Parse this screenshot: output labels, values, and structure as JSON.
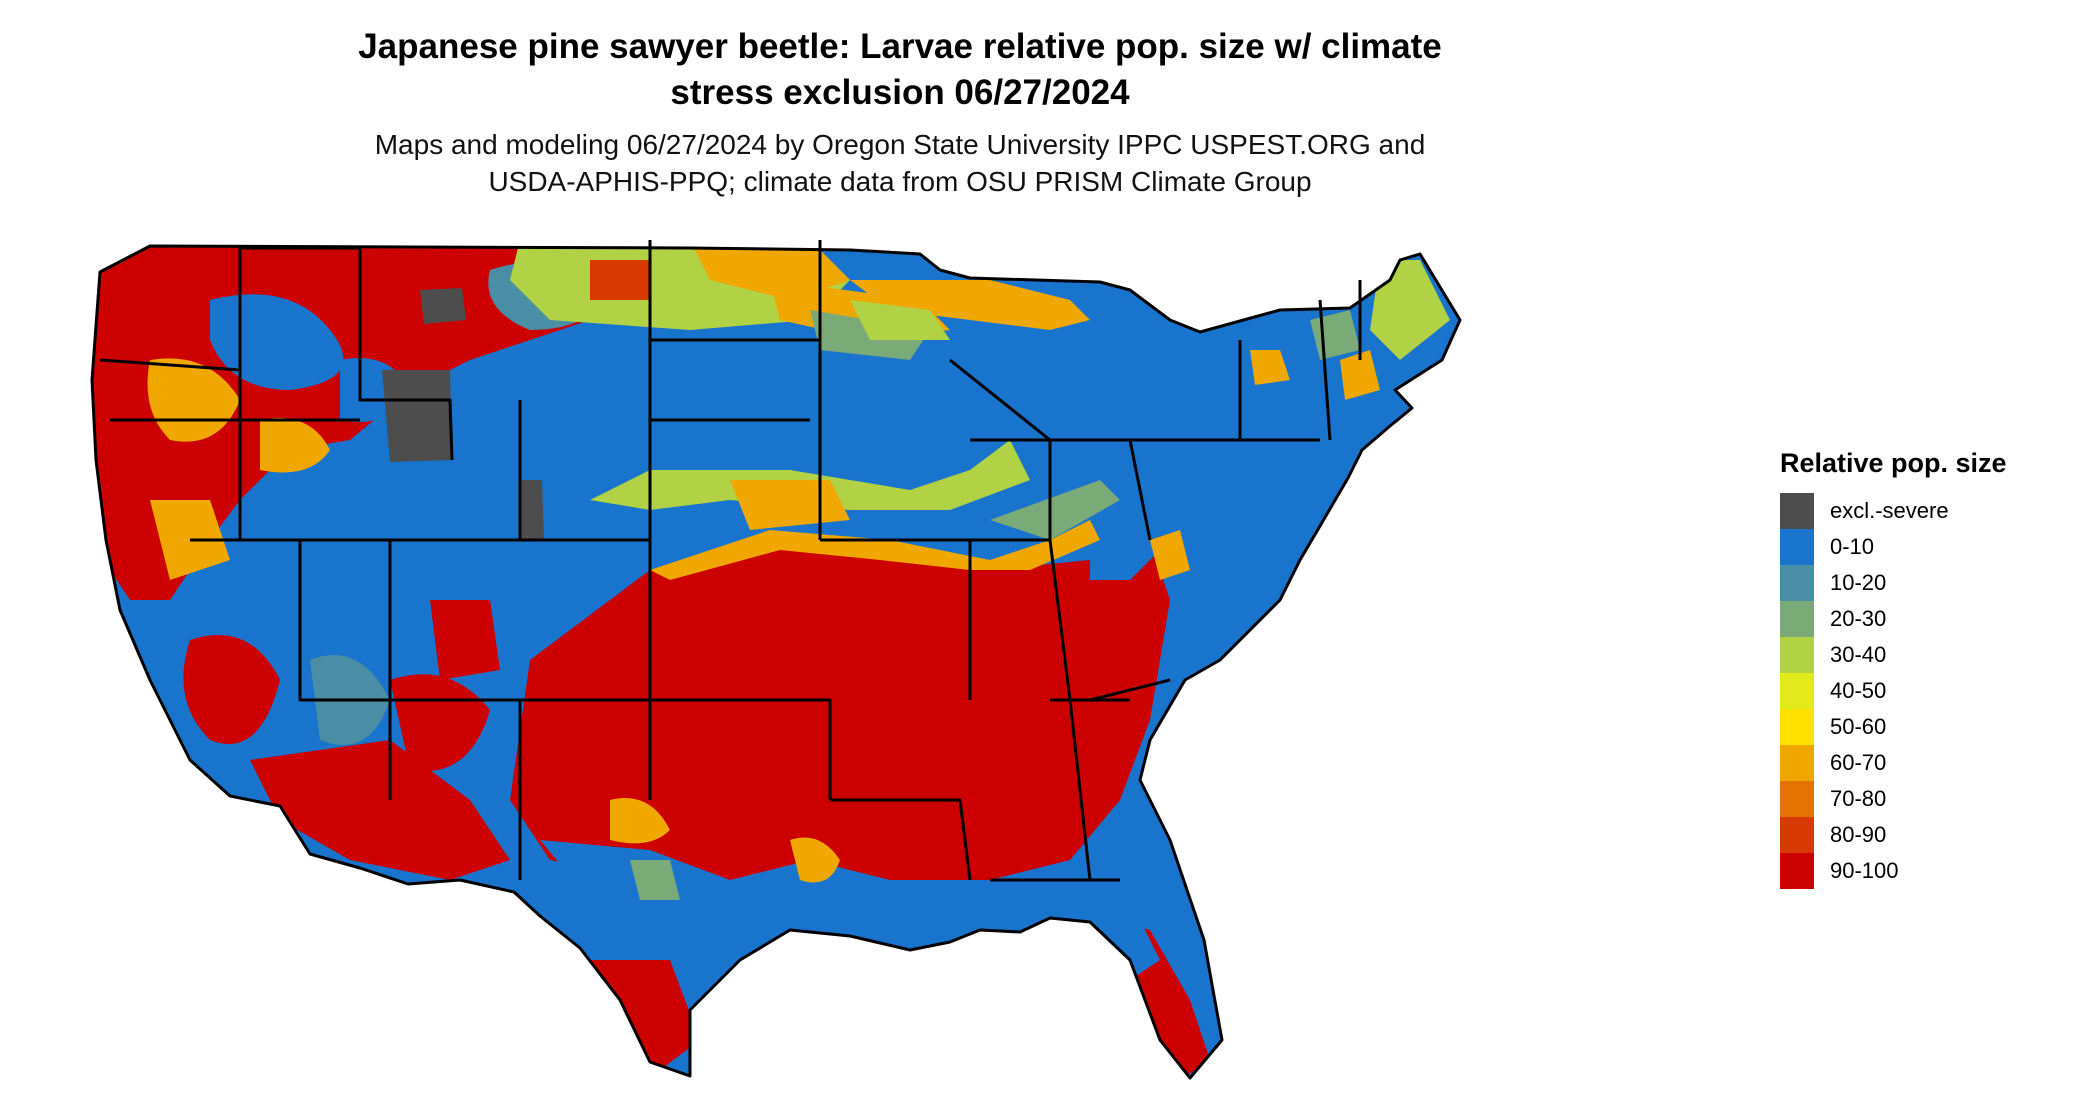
{
  "title": {
    "line1": "Japanese pine sawyer beetle: Larvae relative pop. size w/ climate",
    "line2": "stress exclusion 06/27/2024"
  },
  "subtitle": {
    "line1": "Maps and modeling 06/27/2024 by Oregon State University IPPC USPEST.ORG and",
    "line2": "USDA-APHIS-PPQ; climate data from OSU PRISM Climate Group"
  },
  "legend": {
    "title": "Relative pop. size",
    "items": [
      {
        "label": "excl.-severe",
        "color": "#4d4d4d"
      },
      {
        "label": "0-10",
        "color": "#1874cd"
      },
      {
        "label": "10-20",
        "color": "#4a8ea5"
      },
      {
        "label": "20-30",
        "color": "#7aaa78"
      },
      {
        "label": "30-40",
        "color": "#b0d244"
      },
      {
        "label": "40-50",
        "color": "#e2ea1c"
      },
      {
        "label": "50-60",
        "color": "#ffe000"
      },
      {
        "label": "60-70",
        "color": "#f0a800"
      },
      {
        "label": "70-80",
        "color": "#e37200"
      },
      {
        "label": "80-90",
        "color": "#d63a00"
      },
      {
        "label": "90-100",
        "color": "#cd0000"
      }
    ]
  },
  "map": {
    "regions": [
      {
        "name": "pacific-northwest",
        "color": "#cd0000"
      },
      {
        "name": "great-basin",
        "color": "#1874cd"
      },
      {
        "name": "rocky-mountains",
        "color": "#cd0000"
      },
      {
        "name": "wyoming-excluded",
        "color": "#4d4d4d"
      },
      {
        "name": "northern-plains",
        "color": "#b0d244"
      },
      {
        "name": "central-plains",
        "color": "#1874cd"
      },
      {
        "name": "midwest",
        "color": "#1874cd"
      },
      {
        "name": "upper-great-lakes",
        "color": "#f0a800"
      },
      {
        "name": "northeast",
        "color": "#1874cd"
      },
      {
        "name": "southern-plains",
        "color": "#cd0000"
      },
      {
        "name": "southeast",
        "color": "#cd0000"
      },
      {
        "name": "gulf-coast",
        "color": "#1874cd"
      },
      {
        "name": "florida",
        "color": "#cd0000"
      },
      {
        "name": "southwest",
        "color": "#cd0000"
      }
    ]
  }
}
